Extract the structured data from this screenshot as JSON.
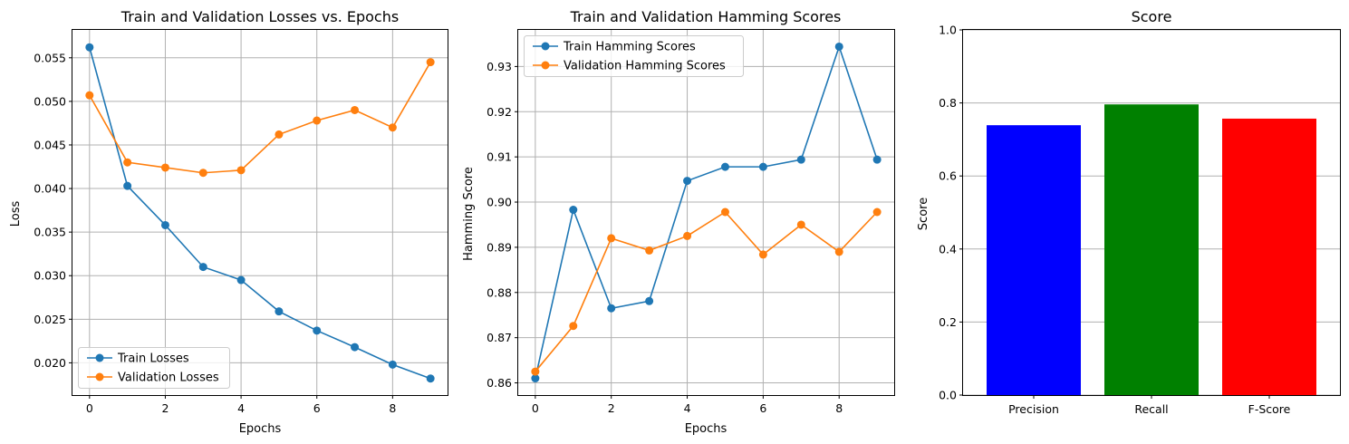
{
  "colors": {
    "train": "#1f77b4",
    "validation": "#ff7f0e",
    "precision": "#0000ff",
    "recall": "#008000",
    "fscore": "#ff0000"
  },
  "chart_data": [
    {
      "type": "line",
      "title": "Train and Validation Losses vs. Epochs",
      "xlabel": "Epochs",
      "ylabel": "Loss",
      "x": [
        0,
        1,
        2,
        3,
        4,
        5,
        6,
        7,
        8,
        9
      ],
      "xlim": [
        -0.45,
        9.45
      ],
      "ylim": [
        0.0163,
        0.0582
      ],
      "xticks": [
        "0",
        "2",
        "4",
        "6",
        "8"
      ],
      "yticks": [
        "0.020",
        "0.025",
        "0.030",
        "0.035",
        "0.040",
        "0.045",
        "0.050",
        "0.055"
      ],
      "grid": true,
      "legend_position": "lower-left",
      "series": [
        {
          "name": "Train Losses",
          "color": "train",
          "values": [
            0.0562,
            0.0403,
            0.0358,
            0.031,
            0.0295,
            0.0259,
            0.0237,
            0.0218,
            0.0198,
            0.0182
          ]
        },
        {
          "name": "Validation Losses",
          "color": "validation",
          "values": [
            0.0507,
            0.043,
            0.0424,
            0.0418,
            0.0421,
            0.0462,
            0.0478,
            0.049,
            0.047,
            0.0545
          ]
        }
      ]
    },
    {
      "type": "line",
      "title": "Train and Validation Hamming Scores",
      "xlabel": "Epochs",
      "ylabel": "Hamming Score",
      "x": [
        0,
        1,
        2,
        3,
        4,
        5,
        6,
        7,
        8,
        9
      ],
      "xlim": [
        -0.45,
        9.45
      ],
      "ylim": [
        0.8573,
        0.9381
      ],
      "xticks": [
        "0",
        "2",
        "4",
        "6",
        "8"
      ],
      "yticks": [
        "0.86",
        "0.87",
        "0.88",
        "0.89",
        "0.90",
        "0.91",
        "0.92",
        "0.93"
      ],
      "grid": true,
      "legend_position": "upper-left",
      "series": [
        {
          "name": "Train Hamming Scores",
          "color": "train",
          "values": [
            0.861,
            0.8983,
            0.8765,
            0.8781,
            0.9047,
            0.9078,
            0.9078,
            0.9094,
            0.9344,
            0.9094
          ]
        },
        {
          "name": "Validation Hamming Scores",
          "color": "validation",
          "values": [
            0.8625,
            0.8726,
            0.892,
            0.8893,
            0.8925,
            0.8978,
            0.8884,
            0.895,
            0.889,
            0.8978
          ]
        }
      ]
    },
    {
      "type": "bar",
      "title": "Score",
      "xlabel": "",
      "ylabel": "Score",
      "ylim": [
        0,
        1
      ],
      "yticks": [
        "0.0",
        "0.2",
        "0.4",
        "0.6",
        "0.8",
        "1.0"
      ],
      "grid": true,
      "categories": [
        "Precision",
        "Recall",
        "F-Score"
      ],
      "bar_colors": [
        "precision",
        "recall",
        "fscore"
      ],
      "values": [
        0.739,
        0.796,
        0.757
      ]
    }
  ]
}
